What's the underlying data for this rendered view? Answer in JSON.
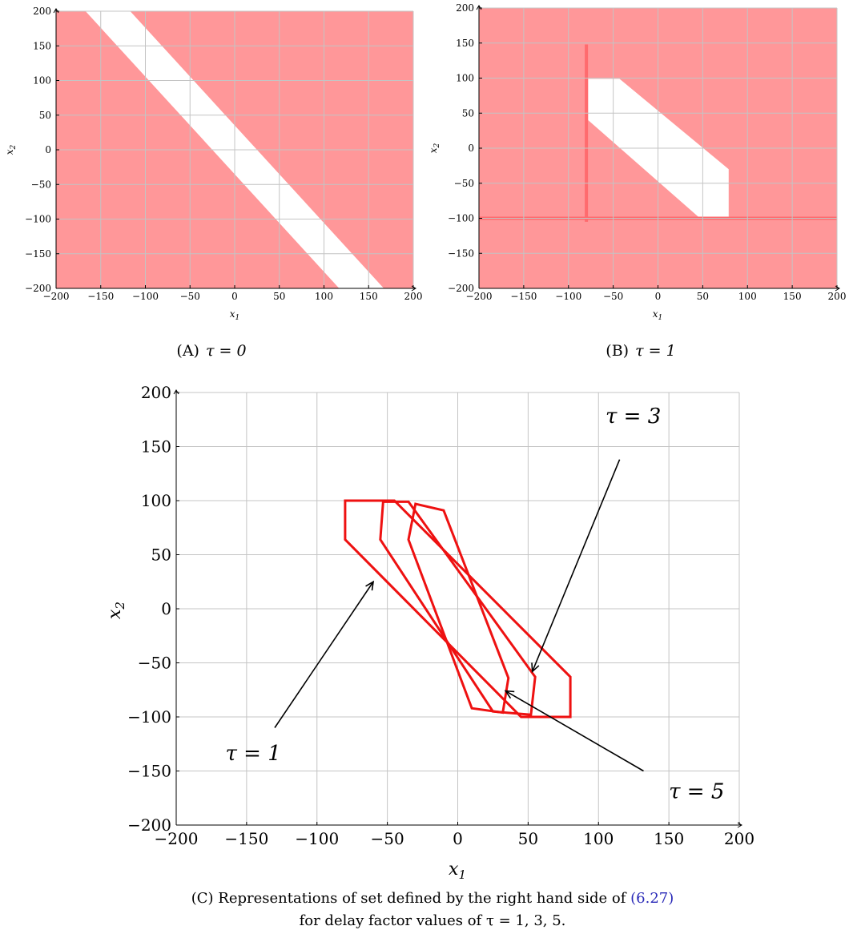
{
  "colors": {
    "region_fill": "#ff9799",
    "region_dark": "#ff6b6e",
    "curve": "#ee1111",
    "grid": "#c4c4c4",
    "ref_link": "#2a2ab8"
  },
  "chart_data": [
    {
      "id": "a",
      "type": "area",
      "caption_label": "(A)",
      "caption_math": "τ = 0",
      "xlabel": "x1",
      "ylabel": "x2",
      "xlim": [
        -200,
        200
      ],
      "ylim": [
        -200,
        200
      ],
      "xticks": [
        -200,
        -150,
        -100,
        -50,
        0,
        50,
        100,
        150,
        200
      ],
      "yticks": [
        -200,
        -150,
        -100,
        -50,
        0,
        50,
        100,
        150,
        200
      ],
      "grid": true,
      "white_band": [
        [
          -167,
          200
        ],
        [
          -117,
          200
        ],
        [
          167,
          -200
        ],
        [
          117,
          -200
        ]
      ]
    },
    {
      "id": "b",
      "type": "area",
      "caption_label": "(B)",
      "caption_math": "τ = 1",
      "xlabel": "x1",
      "ylabel": "x2",
      "xlim": [
        -200,
        200
      ],
      "ylim": [
        -200,
        200
      ],
      "xticks": [
        -200,
        -150,
        -100,
        -50,
        0,
        50,
        100,
        150,
        200
      ],
      "yticks": [
        -200,
        -150,
        -100,
        -50,
        0,
        50,
        100,
        150,
        200
      ],
      "grid": true,
      "white_region": [
        [
          -78,
          99
        ],
        [
          -43,
          99
        ],
        [
          79,
          -30
        ],
        [
          79,
          -100
        ],
        [
          47,
          -100
        ],
        [
          -78,
          40
        ]
      ],
      "dark_strips": [
        {
          "from": [
            -200,
            -100
          ],
          "to": [
            200,
            -100
          ]
        },
        {
          "from": [
            -80,
            -105
          ],
          "to": [
            -80,
            148
          ]
        }
      ]
    },
    {
      "id": "c",
      "type": "line",
      "caption_line1": "(C) Representations of set defined by the right hand side of (6.27)",
      "caption_line1_plain": "(C) Representations of set defined by the right hand side of ",
      "caption_ref": "(6.27)",
      "caption_line2": "for delay factor values of τ = 1, 3, 5.",
      "xlabel": "x1",
      "ylabel": "x2",
      "xlim": [
        -200,
        200
      ],
      "ylim": [
        -200,
        200
      ],
      "xticks": [
        -200,
        -150,
        -100,
        -50,
        0,
        50,
        100,
        150,
        200
      ],
      "yticks": [
        -200,
        -150,
        -100,
        -50,
        0,
        50,
        100,
        150,
        200
      ],
      "grid": true,
      "series": [
        {
          "name": "τ = 1",
          "points": [
            [
              -80,
              100
            ],
            [
              -45,
              100
            ],
            [
              80,
              -63
            ],
            [
              80,
              -100
            ],
            [
              45,
              -100
            ],
            [
              -80,
              64
            ]
          ]
        },
        {
          "name": "τ = 3",
          "points": [
            [
              -53,
              99
            ],
            [
              -35,
              99
            ],
            [
              55,
              -63
            ],
            [
              52,
              -98
            ],
            [
              25,
              -95
            ],
            [
              -55,
              64
            ]
          ]
        },
        {
          "name": "τ = 5",
          "points": [
            [
              -30,
              97
            ],
            [
              -10,
              91
            ],
            [
              36,
              -64
            ],
            [
              32,
              -96
            ],
            [
              10,
              -92
            ],
            [
              -35,
              64
            ]
          ]
        }
      ],
      "annotations": [
        {
          "text": "τ = 1",
          "label_at": [
            -165,
            -140
          ],
          "from": [
            -130,
            -110
          ],
          "to": [
            -60,
            25
          ]
        },
        {
          "text": "τ = 3",
          "label_at": [
            105,
            172
          ],
          "from": [
            115,
            138
          ],
          "to": [
            53,
            -58
          ]
        },
        {
          "text": "τ = 5",
          "label_at": [
            150,
            -175
          ],
          "from": [
            132,
            -150
          ],
          "to": [
            34,
            -76
          ]
        }
      ]
    }
  ]
}
